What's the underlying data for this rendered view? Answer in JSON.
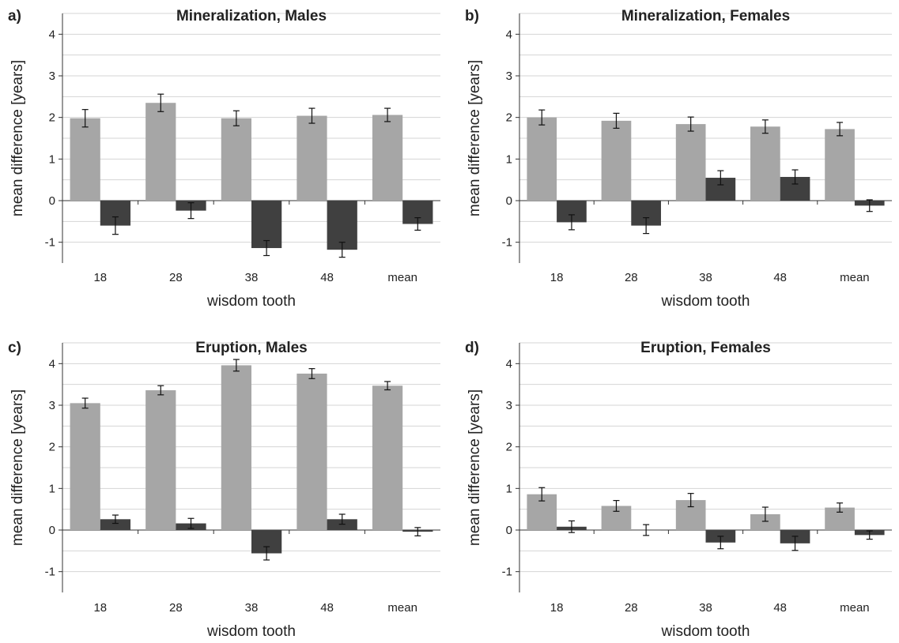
{
  "figure": {
    "colors": {
      "series_a": "#a6a6a6",
      "series_b": "#404040",
      "grid": "#d4d4d4",
      "axis": "#333333"
    }
  },
  "chart_data": [
    {
      "panel_letter": "a)",
      "title": "Mineralization, Males",
      "type": "bar",
      "xlabel": "wisdom tooth",
      "ylabel": "mean difference [years]",
      "categories": [
        "18",
        "28",
        "38",
        "48",
        "mean"
      ],
      "ylim": [
        -1.5,
        4.5
      ],
      "yticks": [
        -1,
        0,
        1,
        2,
        3,
        4
      ],
      "grid": true,
      "series": [
        {
          "color": "#a6a6a6",
          "values": [
            1.98,
            2.35,
            1.98,
            2.04,
            2.06
          ],
          "errors": [
            0.21,
            0.21,
            0.18,
            0.18,
            0.16
          ]
        },
        {
          "color": "#404040",
          "values": [
            -0.6,
            -0.24,
            -1.14,
            -1.18,
            -0.56
          ],
          "errors": [
            0.21,
            0.19,
            0.18,
            0.18,
            0.15
          ]
        }
      ]
    },
    {
      "panel_letter": "b)",
      "title": "Mineralization, Females",
      "type": "bar",
      "xlabel": "wisdom tooth",
      "ylabel": "mean difference [years]",
      "categories": [
        "18",
        "28",
        "38",
        "48",
        "mean"
      ],
      "ylim": [
        -1.5,
        4.5
      ],
      "yticks": [
        -1,
        0,
        1,
        2,
        3,
        4
      ],
      "grid": true,
      "series": [
        {
          "color": "#a6a6a6",
          "values": [
            2.0,
            1.92,
            1.84,
            1.78,
            1.72
          ],
          "errors": [
            0.18,
            0.18,
            0.17,
            0.16,
            0.16
          ]
        },
        {
          "color": "#404040",
          "values": [
            -0.52,
            -0.6,
            0.55,
            0.57,
            -0.12
          ],
          "errors": [
            0.18,
            0.19,
            0.17,
            0.17,
            0.14
          ]
        }
      ]
    },
    {
      "panel_letter": "c)",
      "title": "Eruption, Males",
      "type": "bar",
      "xlabel": "wisdom tooth",
      "ylabel": "mean difference [years]",
      "categories": [
        "18",
        "28",
        "38",
        "48",
        "mean"
      ],
      "ylim": [
        -1.5,
        4.5
      ],
      "yticks": [
        -1,
        0,
        1,
        2,
        3,
        4
      ],
      "grid": true,
      "series": [
        {
          "color": "#a6a6a6",
          "values": [
            3.05,
            3.36,
            3.96,
            3.76,
            3.47
          ],
          "errors": [
            0.12,
            0.11,
            0.14,
            0.12,
            0.1
          ]
        },
        {
          "color": "#404040",
          "values": [
            0.26,
            0.16,
            -0.56,
            0.26,
            -0.04
          ],
          "errors": [
            0.1,
            0.12,
            0.16,
            0.12,
            0.1
          ]
        }
      ]
    },
    {
      "panel_letter": "d)",
      "title": "Eruption, Females",
      "type": "bar",
      "xlabel": "wisdom tooth",
      "ylabel": "mean difference [years]",
      "categories": [
        "18",
        "28",
        "38",
        "48",
        "mean"
      ],
      "ylim": [
        -1.5,
        4.5
      ],
      "yticks": [
        -1,
        0,
        1,
        2,
        3,
        4
      ],
      "grid": true,
      "series": [
        {
          "color": "#a6a6a6",
          "values": [
            0.86,
            0.58,
            0.72,
            0.38,
            0.54
          ],
          "errors": [
            0.16,
            0.13,
            0.16,
            0.17,
            0.11
          ]
        },
        {
          "color": "#404040",
          "values": [
            0.08,
            0.0,
            -0.3,
            -0.32,
            -0.12
          ],
          "errors": [
            0.14,
            0.13,
            0.15,
            0.17,
            0.1
          ]
        }
      ]
    }
  ]
}
